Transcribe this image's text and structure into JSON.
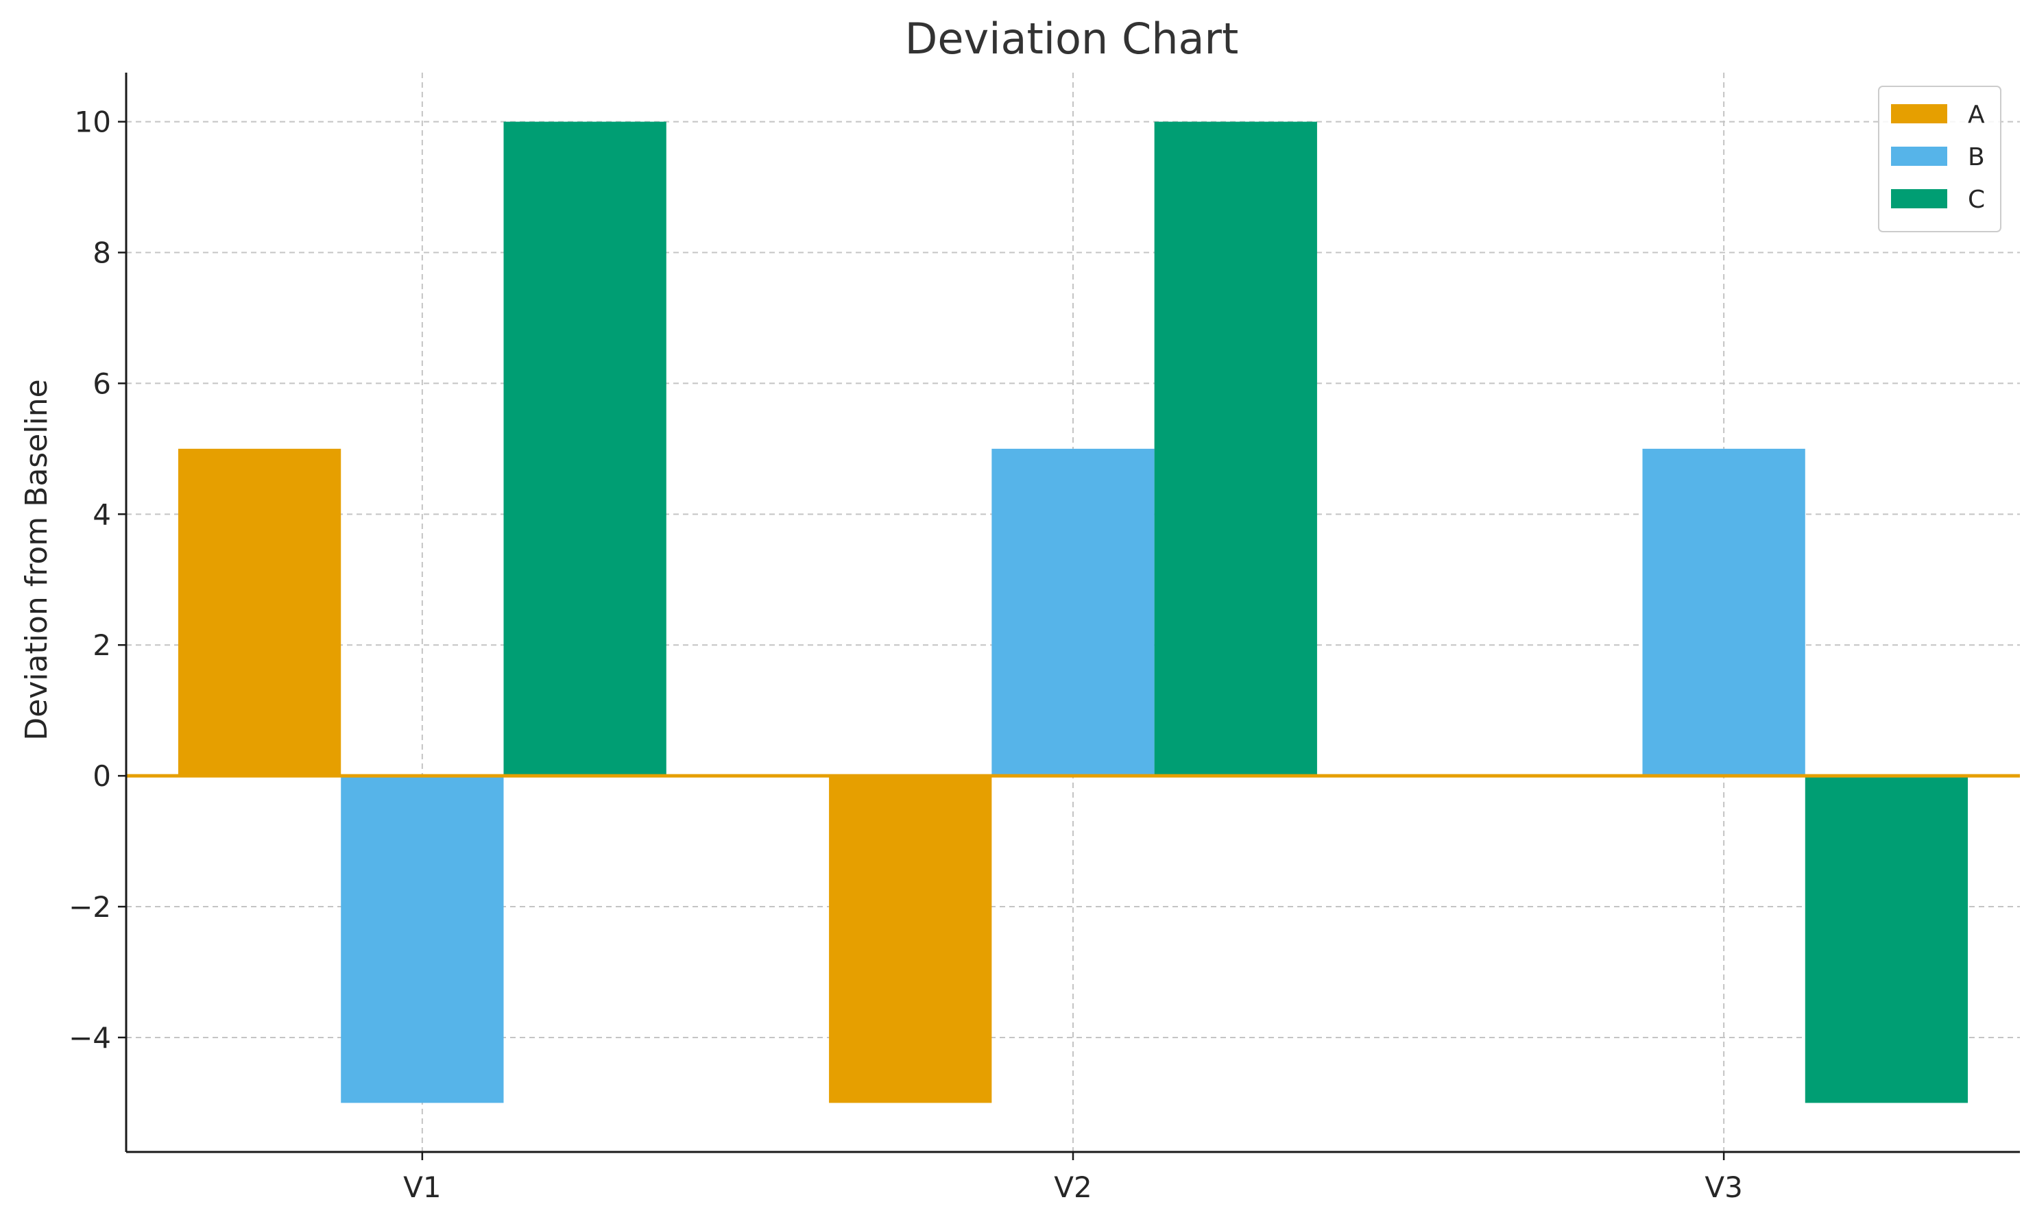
{
  "chart_data": {
    "type": "bar",
    "title": "Deviation Chart",
    "xlabel": "",
    "ylabel": "Deviation from Baseline",
    "categories": [
      "V1",
      "V2",
      "V3"
    ],
    "series": [
      {
        "name": "A",
        "values": [
          5,
          -5,
          0
        ],
        "color": "#E69F00"
      },
      {
        "name": "B",
        "values": [
          -5,
          5,
          5
        ],
        "color": "#56B4E9"
      },
      {
        "name": "C",
        "values": [
          10,
          10,
          -5
        ],
        "color": "#009E73"
      }
    ],
    "ylim": [
      -5.75,
      10.75
    ],
    "yticks": [
      -4,
      -2,
      0,
      2,
      4,
      6,
      8,
      10
    ],
    "ytick_labels": [
      "−4",
      "−2",
      "0",
      "2",
      "4",
      "6",
      "8",
      "10"
    ],
    "baseline": {
      "value": 0,
      "color": "#E69F00"
    },
    "grid": true,
    "legend_position": "top-right"
  }
}
